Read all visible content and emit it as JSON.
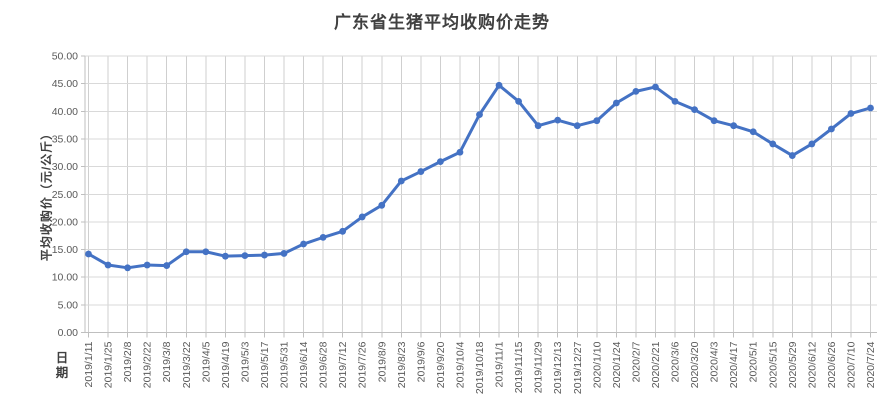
{
  "chart_data": {
    "type": "line",
    "title": "广东省生猪平均收购价走势",
    "xlabel": "日期",
    "ylabel": "平均收购价（元/公斤）",
    "ylim": [
      0,
      50
    ],
    "ytick_step": 5,
    "ytick_decimals": 2,
    "grid": true,
    "legend": false,
    "marker": "circle",
    "categories": [
      "2019/1/11",
      "2019/1/25",
      "2019/2/8",
      "2019/2/22",
      "2019/3/8",
      "2019/3/22",
      "2019/4/5",
      "2019/4/19",
      "2019/5/3",
      "2019/5/17",
      "2019/5/31",
      "2019/6/14",
      "2019/6/28",
      "2019/7/12",
      "2019/7/26",
      "2019/8/9",
      "2019/8/23",
      "2019/9/6",
      "2019/9/20",
      "2019/10/4",
      "2019/10/18",
      "2019/11/1",
      "2019/11/15",
      "2019/11/29",
      "2019/12/13",
      "2019/12/27",
      "2020/1/10",
      "2020/1/24",
      "2020/2/7",
      "2020/2/21",
      "2020/3/6",
      "2020/3/20",
      "2020/4/3",
      "2020/4/17",
      "2020/5/1",
      "2020/5/15",
      "2020/5/29",
      "2020/6/12",
      "2020/6/26",
      "2020/7/10",
      "2020/7/24"
    ],
    "series": [
      {
        "name": "平均收购价",
        "values": [
          14.2,
          12.2,
          11.7,
          12.2,
          12.1,
          14.6,
          14.6,
          13.8,
          13.9,
          14.0,
          14.3,
          16.0,
          17.2,
          18.3,
          20.9,
          23.0,
          27.4,
          29.1,
          30.9,
          32.6,
          39.4,
          44.7,
          41.8,
          37.4,
          38.4,
          37.4,
          38.3,
          41.5,
          43.6,
          44.4,
          41.8,
          40.3,
          38.3,
          37.4,
          36.3,
          34.1,
          32.0,
          34.1,
          36.8,
          39.6,
          40.6
        ]
      }
    ],
    "colors": {
      "line": "#4472C4",
      "marker": "#4472C4",
      "h_gridline": "#D9D9D9",
      "v_gridline": "#CFCFCF",
      "axis": "#BFBFBF",
      "tick_label": "#595959",
      "title_text": "#404040"
    }
  }
}
